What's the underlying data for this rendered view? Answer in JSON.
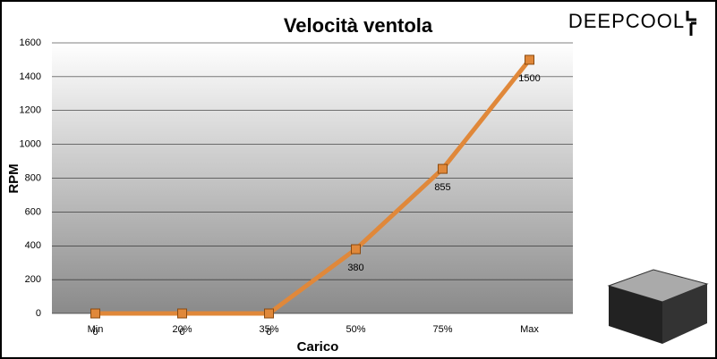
{
  "chart_data": {
    "type": "line",
    "title": "Velocità ventola",
    "brand": "DEEPCOOL",
    "x_label": "Carico",
    "y_label": "RPM",
    "categories": [
      "Min",
      "20%",
      "35%",
      "50%",
      "75%",
      "Max"
    ],
    "series": [
      {
        "name": "RPM",
        "color": "#e0883a",
        "values": [
          0,
          0,
          0,
          380,
          855,
          1500
        ]
      }
    ],
    "ylim": [
      0,
      1600
    ],
    "yticks": [
      0,
      200,
      400,
      600,
      800,
      1000,
      1200,
      1400,
      1600
    ],
    "grid": true
  }
}
